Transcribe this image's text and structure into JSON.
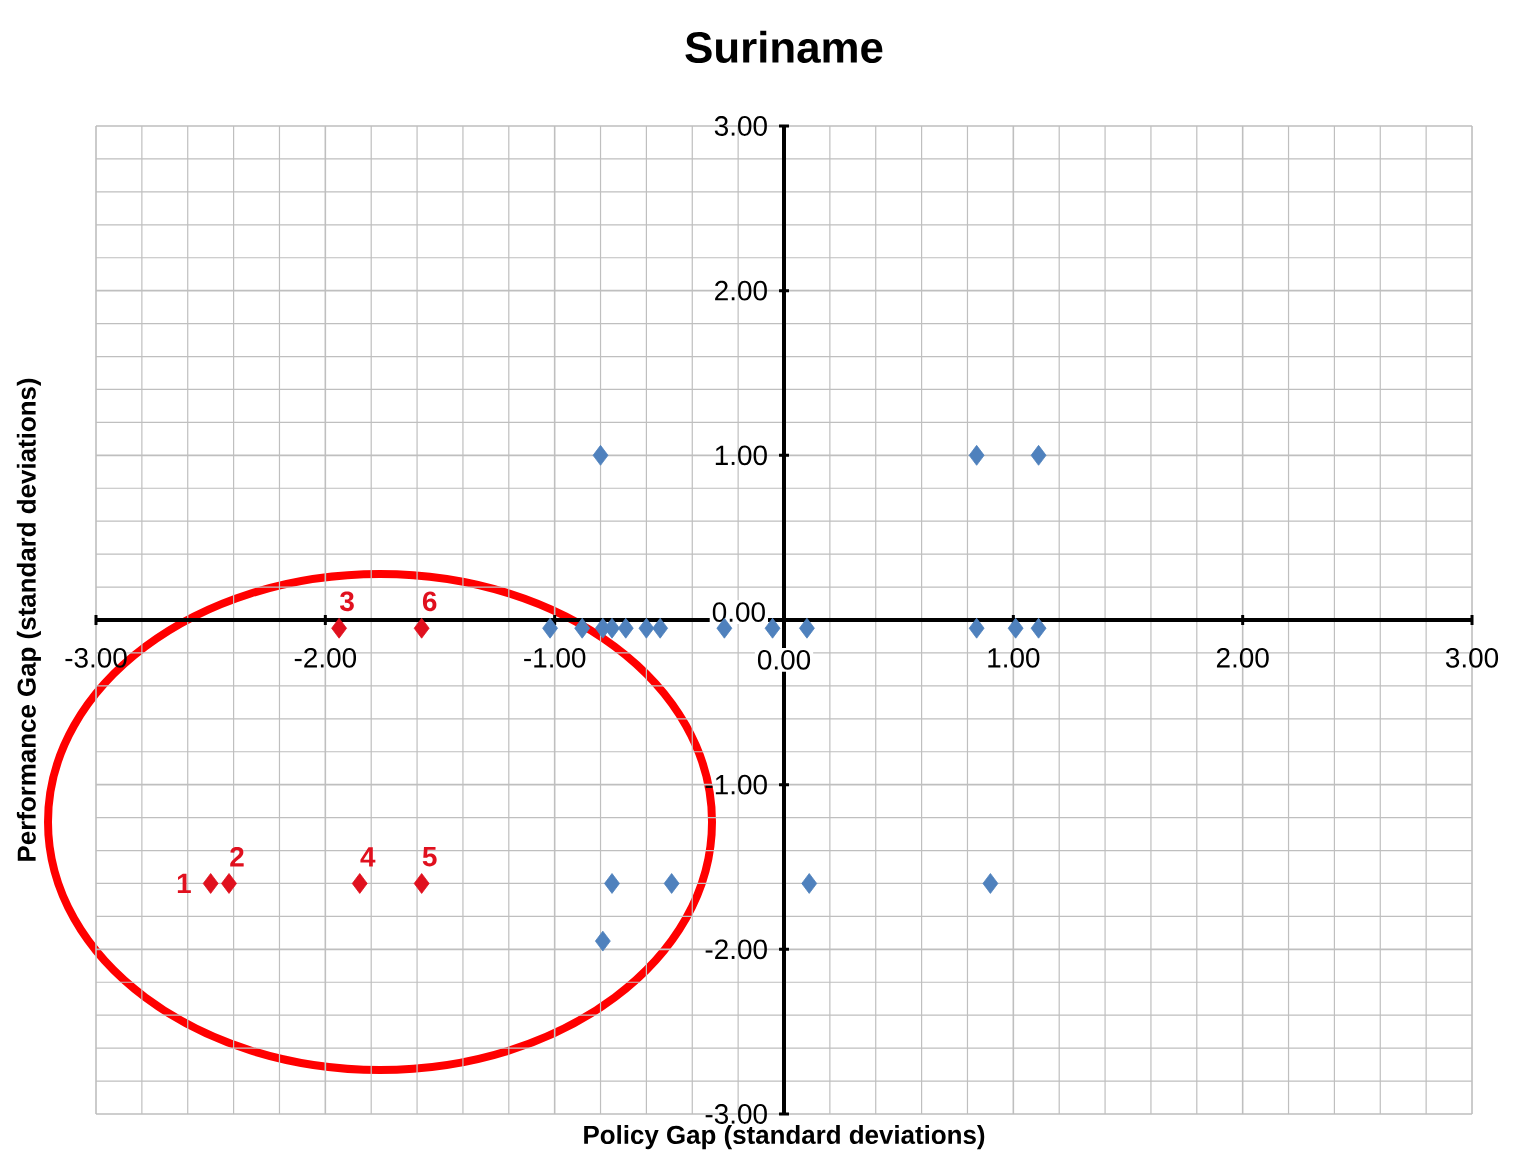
{
  "chart_data": {
    "type": "scatter",
    "title": "Suriname",
    "xlabel": "Policy Gap (standard deviations)",
    "ylabel": "Performance Gap (standard deviations)",
    "xlim": [
      -3,
      3
    ],
    "ylim": [
      -3,
      3
    ],
    "xticks": [
      {
        "value": -3,
        "label": "-3.00"
      },
      {
        "value": -2,
        "label": "-2.00"
      },
      {
        "value": -1,
        "label": "-1.00"
      },
      {
        "value": 0,
        "label": "0.00"
      },
      {
        "value": 1,
        "label": "1.00"
      },
      {
        "value": 2,
        "label": "2.00"
      },
      {
        "value": 3,
        "label": "3.00"
      }
    ],
    "yticks": [
      {
        "value": -3,
        "label": "-3.00"
      },
      {
        "value": -2,
        "label": "-2.00"
      },
      {
        "value": -1,
        "label": "-1.00"
      },
      {
        "value": 0,
        "label": "0.00"
      },
      {
        "value": 1,
        "label": "1.00"
      },
      {
        "value": 2,
        "label": "2.00"
      },
      {
        "value": 3,
        "label": "3.00"
      }
    ],
    "grid": true,
    "marker": "diamond",
    "series": [
      {
        "color": "#4f81bd",
        "x": [
          -1.02,
          -0.88,
          -0.79,
          -0.75,
          -0.69,
          -0.6,
          -0.54,
          -0.26,
          -0.05,
          0.1,
          0.84,
          1.01,
          1.11,
          -0.8,
          0.84,
          1.11,
          -0.75,
          -0.49,
          0.11,
          0.9,
          -0.79
        ],
        "values": [
          -0.05,
          -0.05,
          -0.05,
          -0.05,
          -0.05,
          -0.05,
          -0.05,
          -0.05,
          -0.05,
          -0.05,
          -0.05,
          -0.05,
          -0.05,
          1,
          1,
          1,
          -1.6,
          -1.6,
          -1.6,
          -1.6,
          -1.95
        ]
      },
      {
        "color": "#e0101e",
        "x": [
          -2.5,
          -2.42,
          -1.94,
          -1.85,
          -1.58,
          -1.58
        ],
        "values": [
          -1.6,
          -1.6,
          -0.05,
          -1.6,
          -1.6,
          -0.05
        ]
      }
    ],
    "annotations": [
      {
        "text": "1",
        "x": -2.5,
        "y": -1.6
      },
      {
        "text": "2",
        "x": -2.42,
        "y": -1.6
      },
      {
        "text": "3",
        "x": -1.94,
        "y": -0.05
      },
      {
        "text": "4",
        "x": -1.85,
        "y": -1.6
      },
      {
        "text": "5",
        "x": -1.58,
        "y": -1.6
      },
      {
        "text": "6",
        "x": -1.58,
        "y": -0.05
      }
    ]
  }
}
